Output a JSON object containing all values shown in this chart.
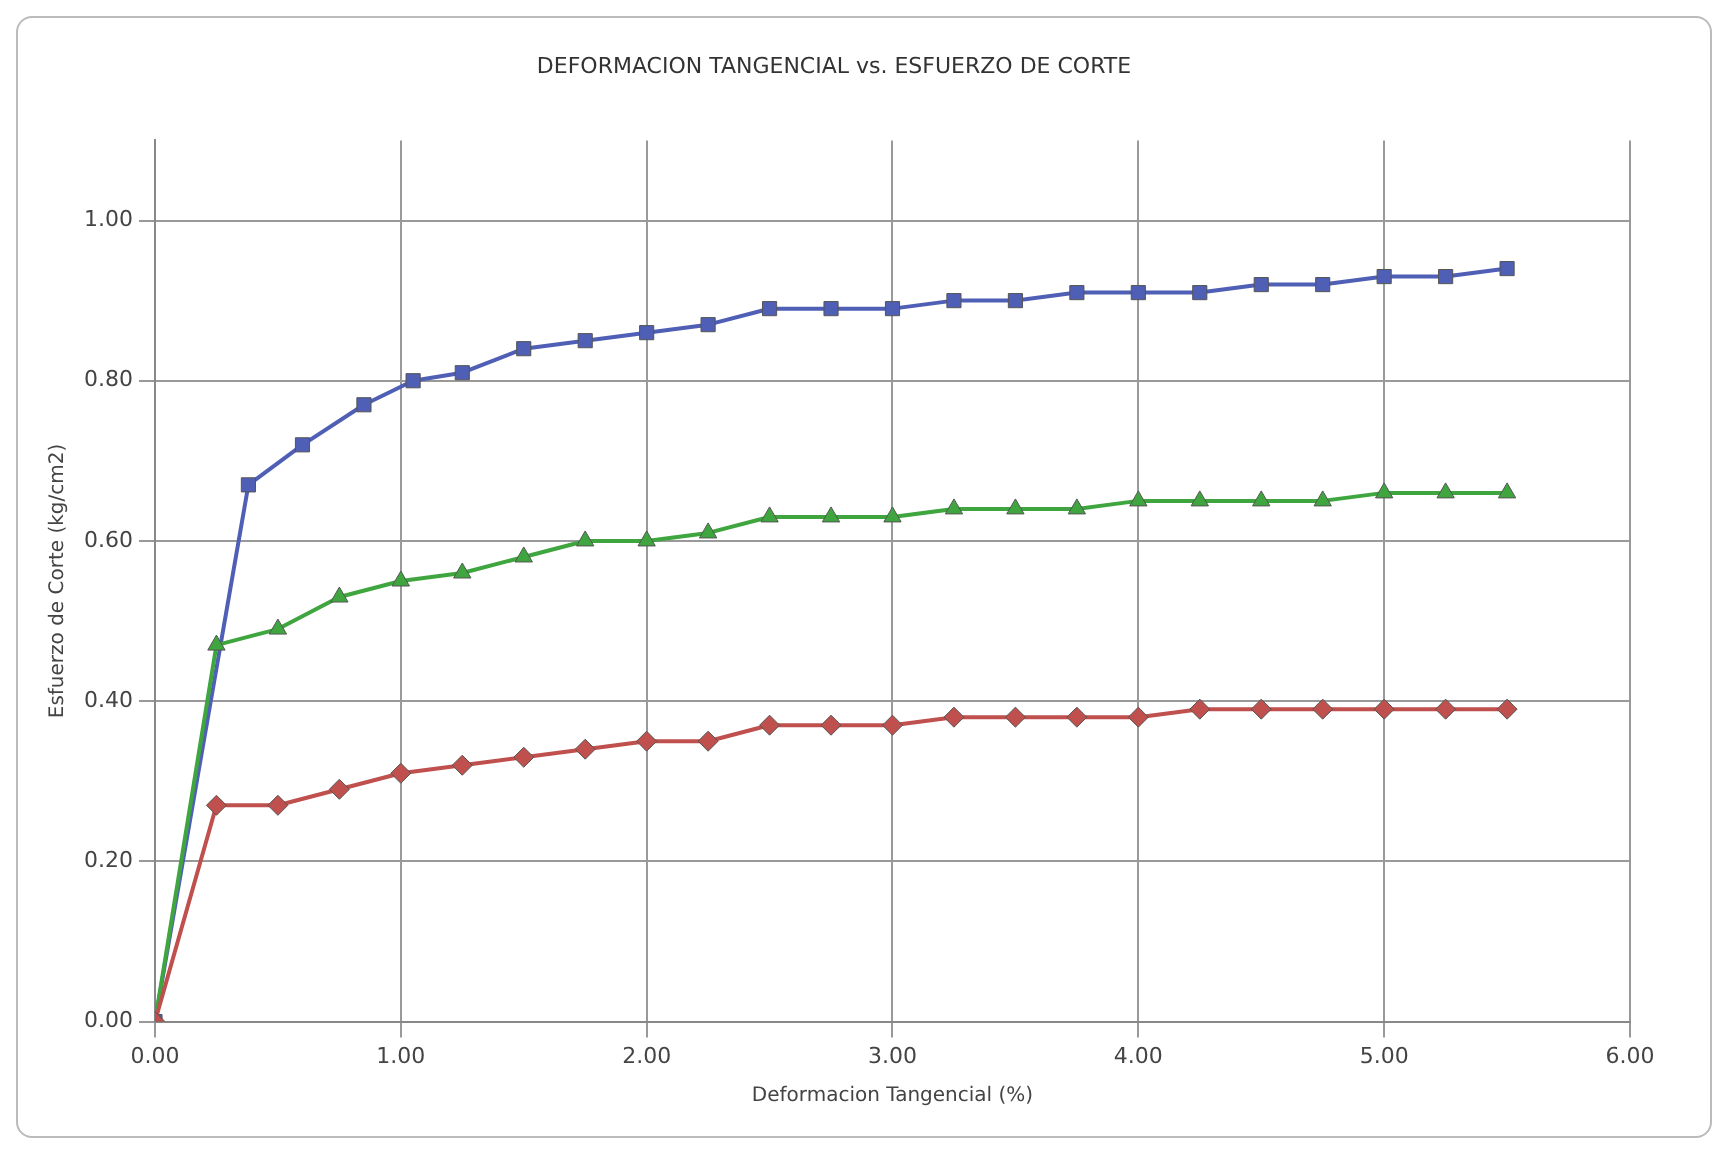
{
  "chart_data": {
    "type": "line",
    "title": "DEFORMACION TANGENCIAL vs. ESFUERZO DE CORTE",
    "xlabel": "Deformacion Tangencial (%)",
    "ylabel": "Esfuerzo de Corte (kg/cm2)",
    "xlim": [
      0,
      6
    ],
    "xticks": [
      {
        "value": 0,
        "label": "0.00"
      },
      {
        "value": 1,
        "label": "1.00"
      },
      {
        "value": 2,
        "label": "2.00"
      },
      {
        "value": 3,
        "label": "3.00"
      },
      {
        "value": 4,
        "label": "4.00"
      },
      {
        "value": 5,
        "label": "5.00"
      },
      {
        "value": 6,
        "label": "6.00"
      }
    ],
    "ylim": [
      0,
      1.1
    ],
    "yticks": [
      {
        "value": 0,
        "label": "0.00"
      },
      {
        "value": 0.2,
        "label": "0.20"
      },
      {
        "value": 0.4,
        "label": "0.40"
      },
      {
        "value": 0.6,
        "label": "0.60"
      },
      {
        "value": 0.8,
        "label": "0.80"
      },
      {
        "value": 1,
        "label": "1.00"
      }
    ],
    "grid": true,
    "legend": false,
    "line_style": "solid",
    "series": [
      {
        "color": "#c0504d",
        "marker": "diamond",
        "x": [
          0,
          0.25,
          0.5,
          0.75,
          1,
          1.25,
          1.5,
          1.75,
          2,
          2.25,
          2.5,
          2.75,
          3,
          3.25,
          3.5,
          3.75,
          4,
          4.25,
          4.5,
          4.75,
          5,
          5.25,
          5.5
        ],
        "values": [
          0,
          0.27,
          0.27,
          0.29,
          0.31,
          0.32,
          0.33,
          0.34,
          0.35,
          0.35,
          0.37,
          0.37,
          0.37,
          0.38,
          0.38,
          0.38,
          0.38,
          0.39,
          0.39,
          0.39,
          0.39,
          0.39,
          0.39
        ]
      },
      {
        "color": "#3fa63f",
        "marker": "triangle",
        "x": [
          0,
          0.25,
          0.5,
          0.75,
          1,
          1.25,
          1.5,
          1.75,
          2,
          2.25,
          2.5,
          2.75,
          3,
          3.25,
          3.5,
          3.75,
          4,
          4.25,
          4.5,
          4.75,
          5,
          5.25,
          5.5
        ],
        "values": [
          0,
          0.47,
          0.49,
          0.53,
          0.55,
          0.56,
          0.58,
          0.6,
          0.6,
          0.61,
          0.63,
          0.63,
          0.63,
          0.64,
          0.64,
          0.64,
          0.65,
          0.65,
          0.65,
          0.65,
          0.66,
          0.66,
          0.66
        ]
      },
      {
        "color": "#4f5fb5",
        "marker": "square",
        "x": [
          0,
          0.38,
          0.6,
          0.85,
          1.05,
          1.25,
          1.5,
          1.75,
          2,
          2.25,
          2.5,
          2.75,
          3,
          3.25,
          3.5,
          3.75,
          4,
          4.25,
          4.5,
          4.75,
          5,
          5.25,
          5.5
        ],
        "values": [
          0,
          0.67,
          0.72,
          0.77,
          0.8,
          0.81,
          0.84,
          0.85,
          0.86,
          0.87,
          0.89,
          0.89,
          0.89,
          0.9,
          0.9,
          0.91,
          0.91,
          0.91,
          0.92,
          0.92,
          0.93,
          0.93,
          0.94
        ]
      }
    ]
  }
}
